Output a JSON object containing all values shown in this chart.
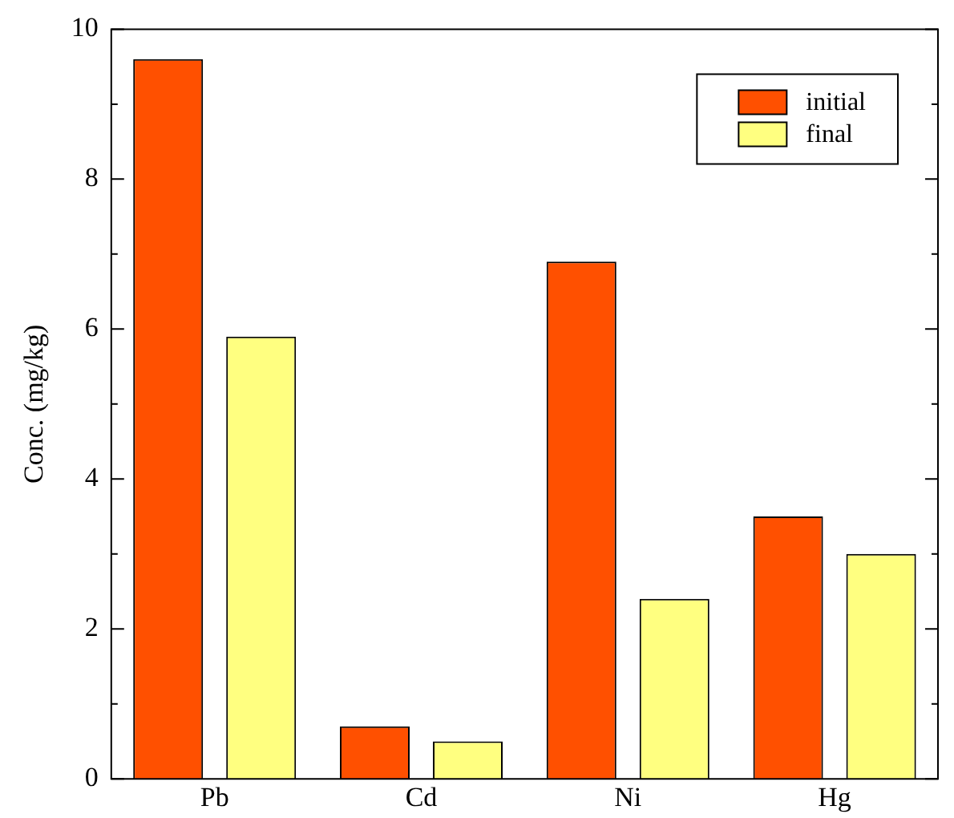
{
  "chart_data": {
    "type": "bar",
    "ylabel": "Conc. (mg/kg)",
    "categories": [
      "Pb",
      "Cd",
      "Ni",
      "Hg"
    ],
    "series": [
      {
        "name": "initial",
        "color": "#ff5000",
        "values": [
          9.6,
          0.7,
          6.9,
          3.5
        ]
      },
      {
        "name": "final",
        "color": "#ffff80",
        "values": [
          5.9,
          0.5,
          2.4,
          3.0
        ]
      }
    ],
    "ylim": [
      0,
      10
    ],
    "yticks": [
      0,
      2,
      4,
      6,
      8,
      10
    ],
    "grid": false,
    "legend": "top right"
  }
}
